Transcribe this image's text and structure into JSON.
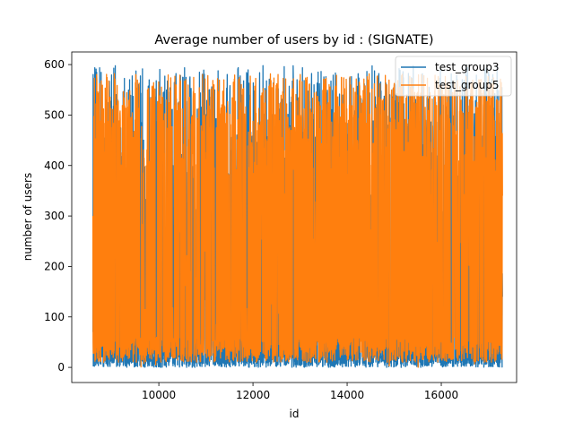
{
  "chart_data": {
    "type": "line",
    "title": "Average number of users by id : (SIGNATE)",
    "xlabel": "id",
    "ylabel": "number of users",
    "xlim": [
      8150,
      17600
    ],
    "ylim": [
      -30,
      625
    ],
    "xticks": [
      10000,
      12000,
      14000,
      16000
    ],
    "yticks": [
      0,
      100,
      200,
      300,
      400,
      500,
      600
    ],
    "x_data_range": [
      8600,
      17300
    ],
    "grid": false,
    "legend_position": "top-right",
    "series": [
      {
        "name": "test_group3",
        "color": "#1f77b4",
        "value_range": [
          0,
          598
        ],
        "description_samples": [
          [
            8600,
            70
          ],
          [
            8630,
            310
          ],
          [
            8660,
            540
          ],
          [
            8700,
            5
          ],
          [
            8750,
            470
          ],
          [
            8800,
            0
          ],
          [
            8850,
            520
          ],
          [
            9000,
            580
          ],
          [
            9200,
            595
          ],
          [
            9400,
            590
          ],
          [
            9600,
            560
          ],
          [
            9800,
            585
          ],
          [
            10000,
            590
          ],
          [
            10500,
            580
          ],
          [
            11000,
            590
          ],
          [
            11500,
            585
          ],
          [
            12000,
            595
          ],
          [
            12500,
            598
          ],
          [
            13000,
            590
          ],
          [
            13500,
            595
          ],
          [
            14000,
            590
          ],
          [
            14500,
            585
          ],
          [
            15000,
            580
          ],
          [
            15300,
            480
          ],
          [
            15500,
            575
          ],
          [
            16000,
            585
          ],
          [
            16500,
            580
          ],
          [
            17000,
            560
          ],
          [
            17250,
            460
          ],
          [
            17300,
            140
          ]
        ]
      },
      {
        "name": "test_group5",
        "color": "#ff7f0e",
        "value_range": [
          0,
          582
        ],
        "description_samples": [
          [
            8600,
            300
          ],
          [
            8630,
            555
          ],
          [
            8700,
            560
          ],
          [
            9000,
            580
          ],
          [
            9500,
            575
          ],
          [
            10000,
            580
          ],
          [
            10500,
            570
          ],
          [
            11000,
            582
          ],
          [
            11500,
            580
          ],
          [
            12000,
            578
          ],
          [
            12500,
            580
          ],
          [
            13000,
            582
          ],
          [
            13500,
            575
          ],
          [
            14000,
            580
          ],
          [
            14500,
            578
          ],
          [
            15000,
            580
          ],
          [
            15500,
            575
          ],
          [
            16000,
            580
          ],
          [
            16500,
            578
          ],
          [
            17000,
            580
          ],
          [
            17300,
            340
          ]
        ]
      }
    ]
  }
}
